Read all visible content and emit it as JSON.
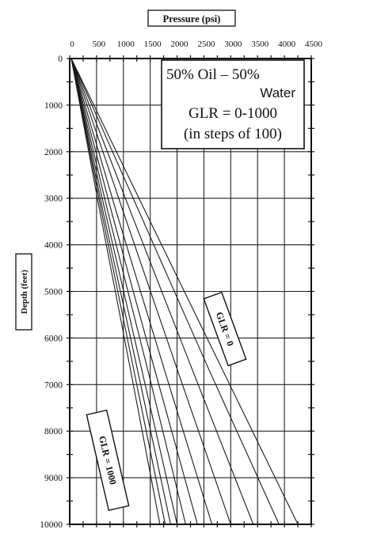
{
  "chart_data": {
    "type": "line",
    "title": "Pressure (psi)",
    "xlabel": "Pressure (psi)",
    "ylabel": "Depth (feet)",
    "xlim": [
      0,
      4500
    ],
    "ylim": [
      0,
      10000
    ],
    "y_inverted": true,
    "x_axis_position": "top",
    "grid": true,
    "x_ticks": [
      0,
      500,
      1000,
      1500,
      2000,
      2500,
      3000,
      3500,
      4000,
      4500
    ],
    "y_ticks": [
      0,
      1000,
      2000,
      3000,
      4000,
      5000,
      6000,
      7000,
      8000,
      9000,
      10000
    ],
    "x_tick_labels": [
      "0",
      "500",
      "1000",
      "1500",
      "2000",
      "2500",
      "3000",
      "3500",
      "4000",
      "4500"
    ],
    "y_tick_labels": [
      "0",
      "1000",
      "2000",
      "3000",
      "4000",
      "5000",
      "6000",
      "7000",
      "8000",
      "9000",
      "10000"
    ],
    "legend_box": {
      "line1_a": "50% Oil – 50%",
      "line1_b": "Water",
      "line2": "GLR = 0-1000",
      "line3": "(in steps of 100)"
    },
    "annotations": [
      {
        "text": "GLR = 0"
      },
      {
        "text": "GLR = 1000"
      }
    ],
    "series": [
      {
        "glr": 0,
        "x": [
          30,
          1430,
          2840,
          4250
        ],
        "y": [
          0,
          3333,
          6667,
          10000
        ]
      },
      {
        "glr": 100,
        "x": [
          30,
          1310,
          2590,
          3900
        ],
        "y": [
          0,
          3333,
          6667,
          10000
        ]
      },
      {
        "glr": 200,
        "x": [
          30,
          1150,
          2280,
          3420
        ],
        "y": [
          0,
          3333,
          6667,
          10000
        ]
      },
      {
        "glr": 300,
        "x": [
          30,
          1010,
          2000,
          3000
        ],
        "y": [
          0,
          3333,
          6667,
          10000
        ]
      },
      {
        "glr": 400,
        "x": [
          30,
          880,
          1760,
          2650
        ],
        "y": [
          0,
          3333,
          6667,
          10000
        ]
      },
      {
        "glr": 500,
        "x": [
          30,
          790,
          1580,
          2380
        ],
        "y": [
          0,
          3333,
          6667,
          10000
        ]
      },
      {
        "glr": 600,
        "x": [
          30,
          720,
          1450,
          2160
        ],
        "y": [
          0,
          3333,
          6667,
          10000
        ]
      },
      {
        "glr": 700,
        "x": [
          30,
          670,
          1340,
          2000
        ],
        "y": [
          0,
          3333,
          6667,
          10000
        ]
      },
      {
        "glr": 800,
        "x": [
          30,
          630,
          1260,
          1880
        ],
        "y": [
          0,
          3333,
          6667,
          10000
        ]
      },
      {
        "glr": 900,
        "x": [
          30,
          600,
          1190,
          1780
        ],
        "y": [
          0,
          3333,
          6667,
          10000
        ]
      },
      {
        "glr": 1000,
        "x": [
          30,
          570,
          1130,
          1680
        ],
        "y": [
          0,
          3333,
          6667,
          10000
        ]
      }
    ]
  }
}
